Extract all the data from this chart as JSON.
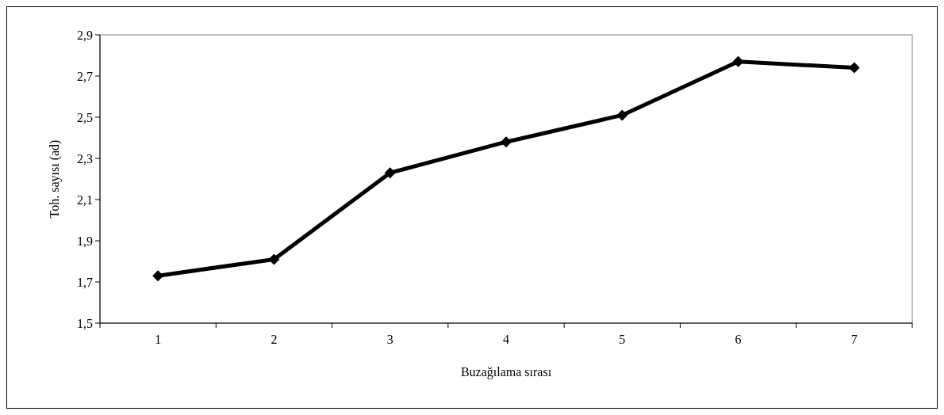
{
  "chart_data": {
    "type": "line",
    "xlabel": "Buzağılama sırası",
    "ylabel": "Toh. sayısı (ad)",
    "categories": [
      "1",
      "2",
      "3",
      "4",
      "5",
      "6",
      "7"
    ],
    "series": [
      {
        "color": "#000000",
        "values": [
          1.73,
          1.81,
          2.23,
          2.38,
          2.51,
          2.77,
          2.74
        ]
      }
    ],
    "ylim": [
      1.5,
      2.9
    ],
    "yticks": [
      {
        "value": 1.5,
        "label": "1,5"
      },
      {
        "value": 1.7,
        "label": "1,7"
      },
      {
        "value": 1.9,
        "label": "1,9"
      },
      {
        "value": 2.1,
        "label": "2,1"
      },
      {
        "value": 2.3,
        "label": "2,3"
      },
      {
        "value": 2.5,
        "label": "2,5"
      },
      {
        "value": 2.7,
        "label": "2,7"
      },
      {
        "value": 2.9,
        "label": "2,9"
      }
    ],
    "marker": "diamond",
    "line_style": "solid"
  }
}
